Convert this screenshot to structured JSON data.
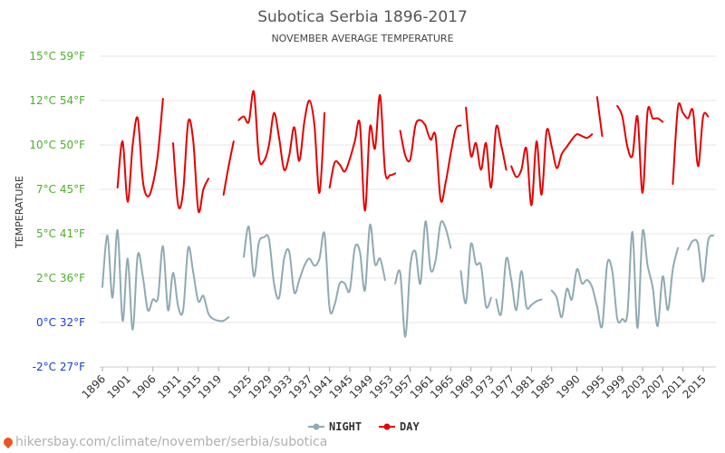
{
  "chart_data": {
    "type": "line",
    "title": "Subotica Serbia 1896-2017",
    "subtitle": "NOVEMBER AVERAGE TEMPERATURE",
    "ylabel": "TEMPERATURE",
    "ylim": [
      -2.5,
      15
    ],
    "y_ticks": [
      {
        "value": 15,
        "label": "15°C 59°F",
        "color": "#4caf2c"
      },
      {
        "value": 12.5,
        "label": "12°C 54°F",
        "color": "#4caf2c"
      },
      {
        "value": 10,
        "label": "10°C 50°F",
        "color": "#4caf2c"
      },
      {
        "value": 7.5,
        "label": "7°C 45°F",
        "color": "#4caf2c"
      },
      {
        "value": 5,
        "label": "5°C 41°F",
        "color": "#4caf2c"
      },
      {
        "value": 2.5,
        "label": "2°C 36°F",
        "color": "#4caf2c"
      },
      {
        "value": 0,
        "label": "0°C 32°F",
        "color": "#1a3dcc"
      },
      {
        "value": -2.5,
        "label": "-2°C 27°F",
        "color": "#1a3dcc"
      }
    ],
    "xlim": [
      1896,
      2017
    ],
    "x_ticks": [
      "1896",
      "1901",
      "1906",
      "1911",
      "1915",
      "1919",
      "1925",
      "1929",
      "1933",
      "1937",
      "1941",
      "1945",
      "1949",
      "1953",
      "1957",
      "1961",
      "1965",
      "1969",
      "1973",
      "1977",
      "1981",
      "1985",
      "1990",
      "1995",
      "1999",
      "2003",
      "2007",
      "2011",
      "2015"
    ],
    "grid": true,
    "legend_position": "bottom-center",
    "series": [
      {
        "name": "NIGHT",
        "color": "#8faab3",
        "segments": [
          {
            "x": [
              1896,
              1897,
              1898,
              1899,
              1900,
              1901,
              1902,
              1903,
              1904,
              1905,
              1906,
              1907,
              1908,
              1909,
              1910,
              1911,
              1912,
              1913,
              1914,
              1915,
              1916,
              1917,
              1918,
              1919,
              1920,
              1921
            ],
            "y": [
              2.0,
              4.9,
              1.4,
              5.2,
              0.1,
              3.6,
              -0.4,
              3.8,
              2.6,
              0.7,
              1.3,
              1.4,
              4.3,
              0.7,
              2.8,
              0.9,
              0.7,
              4.2,
              2.8,
              1.2,
              1.5,
              0.5,
              0.2,
              0.1,
              0.1,
              0.3
            ]
          },
          {
            "x": [
              1924,
              1925,
              1926,
              1927,
              1928,
              1929,
              1930,
              1931,
              1932,
              1933,
              1934,
              1935,
              1936,
              1937,
              1938,
              1939,
              1940,
              1941,
              1942,
              1943,
              1944,
              1945,
              1946,
              1947,
              1948,
              1949,
              1950,
              1951,
              1952
            ],
            "y": [
              3.7,
              5.4,
              2.6,
              4.5,
              4.8,
              4.7,
              2.2,
              1.4,
              3.6,
              4.0,
              1.7,
              2.4,
              3.2,
              3.6,
              3.2,
              3.6,
              5.0,
              0.8,
              1.0,
              2.2,
              2.2,
              1.8,
              4.2,
              4.0,
              1.8,
              5.5,
              3.3,
              3.6,
              2.4
            ]
          },
          {
            "x": [
              1954,
              1955,
              1956,
              1957,
              1958,
              1959,
              1960,
              1961,
              1962,
              1963,
              1964,
              1965
            ],
            "y": [
              2.2,
              2.8,
              -0.8,
              3.2,
              4.0,
              2.2,
              5.7,
              3.0,
              3.5,
              5.6,
              5.3,
              4.2
            ]
          },
          {
            "x": [
              1967,
              1968,
              1969,
              1970,
              1971,
              1972,
              1973
            ],
            "y": [
              2.9,
              1.1,
              4.4,
              3.3,
              3.2,
              0.9,
              1.4
            ]
          },
          {
            "x": [
              1974,
              1975,
              1976,
              1977,
              1978,
              1979,
              1980,
              1981,
              1982,
              1983
            ],
            "y": [
              1.3,
              0.5,
              3.6,
              2.4,
              0.7,
              2.9,
              0.9,
              1.0,
              1.2,
              1.3
            ]
          },
          {
            "x": [
              1985,
              1986,
              1987,
              1988,
              1989,
              1990,
              1991,
              1992,
              1993,
              1994,
              1995,
              1996,
              1997,
              1998,
              1999,
              2000,
              2001,
              2002,
              2003,
              2004,
              2005,
              2006,
              2007,
              2008,
              2009,
              2010
            ],
            "y": [
              1.8,
              1.4,
              0.3,
              1.9,
              1.3,
              3.0,
              2.2,
              2.4,
              2.0,
              0.9,
              -0.2,
              3.3,
              2.9,
              0.2,
              0.2,
              0.5,
              5.1,
              -0.3,
              5.1,
              3.2,
              2.0,
              -0.2,
              2.6,
              0.7,
              3.0,
              4.2
            ]
          },
          {
            "x": [
              2012,
              2013,
              2014,
              2015,
              2016,
              2017
            ],
            "y": [
              4.1,
              4.6,
              4.4,
              2.3,
              4.6,
              4.9
            ]
          }
        ]
      },
      {
        "name": "DAY",
        "color": "#e60000",
        "segments": [
          {
            "x": [
              1899,
              1900,
              1901,
              1902,
              1903,
              1904,
              1905,
              1906,
              1907,
              1908
            ],
            "y": [
              7.6,
              10.2,
              6.8,
              10.0,
              11.5,
              8.0,
              7.1,
              7.8,
              9.5,
              12.6
            ]
          },
          {
            "x": [
              1910,
              1911,
              1912,
              1913,
              1914,
              1915,
              1916,
              1917
            ],
            "y": [
              10.1,
              6.6,
              7.4,
              11.3,
              10.2,
              6.3,
              7.5,
              8.1
            ]
          },
          {
            "x": [
              1920,
              1921,
              1922
            ],
            "y": [
              7.2,
              8.8,
              10.2
            ]
          },
          {
            "x": [
              1923,
              1924,
              1925,
              1926,
              1927,
              1928,
              1929,
              1930,
              1931,
              1932,
              1933,
              1934,
              1935,
              1936,
              1937,
              1938,
              1939,
              1940
            ],
            "y": [
              11.4,
              11.6,
              11.3,
              13.0,
              9.3,
              9.1,
              10.0,
              11.8,
              10.4,
              8.6,
              9.4,
              11.0,
              9.1,
              11.3,
              12.5,
              11.1,
              7.3,
              11.8
            ]
          },
          {
            "x": [
              1941,
              1942,
              1943,
              1944,
              1945,
              1946,
              1947,
              1948,
              1949,
              1950,
              1951,
              1952,
              1953,
              1954
            ],
            "y": [
              7.6,
              9.0,
              8.9,
              8.5,
              9.2,
              10.2,
              11.2,
              6.3,
              11.0,
              9.8,
              12.8,
              8.5,
              8.3,
              8.4
            ]
          },
          {
            "x": [
              1955,
              1956,
              1957,
              1958,
              1959,
              1960
            ],
            "y": [
              10.8,
              9.4,
              9.2,
              11.1,
              11.4,
              11.1
            ]
          },
          {
            "x": [
              1960,
              1961,
              1962,
              1963,
              1964,
              1965,
              1966,
              1967
            ],
            "y": [
              11.1,
              10.3,
              10.5,
              6.9,
              7.9,
              9.5,
              10.9,
              11.1
            ]
          },
          {
            "x": [
              1968,
              1969,
              1970,
              1971,
              1972,
              1973,
              1974,
              1975,
              1976
            ],
            "y": [
              12.1,
              9.4,
              10.1,
              8.6,
              10.1,
              7.6,
              11.0,
              10.0,
              8.6
            ]
          },
          {
            "x": [
              1977,
              1978,
              1979,
              1980,
              1981,
              1982,
              1983,
              1984,
              1985,
              1986,
              1987,
              1988,
              1989,
              1990,
              1991,
              1992,
              1993
            ],
            "y": [
              8.8,
              8.2,
              8.6,
              9.8,
              6.6,
              10.2,
              7.2,
              10.8,
              9.9,
              8.7,
              9.5,
              9.9,
              10.3,
              10.6,
              10.5,
              10.4,
              10.6
            ]
          },
          {
            "x": [
              1994,
              1995
            ],
            "y": [
              12.7,
              10.5
            ]
          },
          {
            "x": [
              1998,
              1999,
              2000,
              2001,
              2002,
              2003,
              2004,
              2005,
              2006,
              2007
            ],
            "y": [
              12.2,
              11.6,
              9.9,
              9.4,
              11.6,
              7.3,
              11.9,
              11.5,
              11.5,
              11.3
            ]
          },
          {
            "x": [
              2009,
              2010,
              2011,
              2012,
              2013,
              2014,
              2015,
              2016
            ],
            "y": [
              7.8,
              12.1,
              11.8,
              11.5,
              11.9,
              8.8,
              11.6,
              11.6
            ]
          }
        ]
      }
    ],
    "legend": [
      {
        "name": "NIGHT",
        "color": "#8faab3"
      },
      {
        "name": "DAY",
        "color": "#e60000"
      }
    ]
  },
  "watermark": "hikersbay.com/climate/november/serbia/subotica"
}
